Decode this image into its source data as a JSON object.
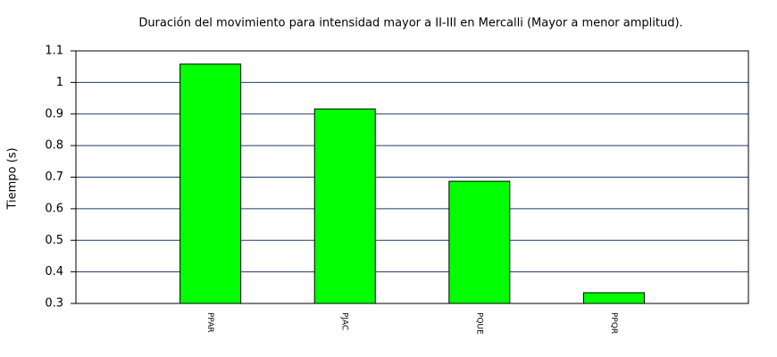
{
  "chart_data": {
    "type": "bar",
    "title": "Duración del movimiento para intensidad mayor a II-III en Mercalli (Mayor a menor amplitud).",
    "y_label": "Tiempo (s)",
    "categories": [
      "PPAR",
      "PJAC",
      "PQUE",
      "PPQR"
    ],
    "values": [
      1.058,
      0.916,
      0.687,
      0.334
    ],
    "color": "#00ff00",
    "ylim": [
      0.3,
      1.1
    ],
    "yticks": [
      0.3,
      0.4,
      0.5,
      0.6,
      0.7,
      0.8,
      0.9,
      1,
      1.1
    ],
    "grid": true
  }
}
